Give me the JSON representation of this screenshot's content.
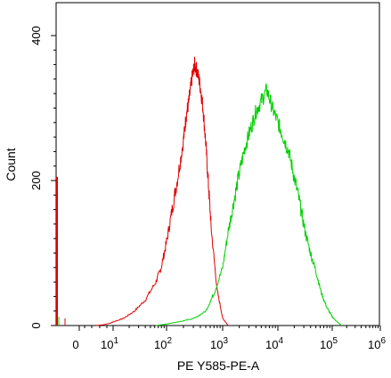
{
  "chart_data": {
    "type": "line",
    "xlabel": "PE Y585-PE-A",
    "ylabel": "Count",
    "x_scale": "biexponential",
    "ylim": [
      0,
      400
    ],
    "x_tick_labels": [
      "0",
      "10^1",
      "10^2",
      "10^3",
      "10^4",
      "10^5",
      "10^6"
    ],
    "x_tick_base": [
      "0",
      "10",
      "10",
      "10",
      "10",
      "10",
      "10"
    ],
    "x_tick_exp": [
      "",
      "1",
      "2",
      "3",
      "4",
      "5",
      "6"
    ],
    "y_tick_labels": [
      "0",
      "200",
      "400"
    ],
    "y_ticks": [
      0,
      200,
      400
    ],
    "grid": false,
    "legend": "none",
    "series": [
      {
        "color": "#e00000",
        "x": [
          0.5,
          0.7,
          0.9,
          1.0,
          1.2,
          1.4,
          1.6,
          1.8,
          1.9,
          2.0,
          2.1,
          2.2,
          2.3,
          2.35,
          2.4,
          2.45,
          2.5,
          2.55,
          2.6,
          2.65,
          2.7,
          2.75,
          2.8,
          2.9,
          3.0,
          3.1
        ],
        "y": [
          0,
          1,
          3,
          5,
          10,
          20,
          35,
          60,
          80,
          115,
          160,
          205,
          255,
          290,
          310,
          340,
          360,
          350,
          330,
          300,
          250,
          190,
          130,
          50,
          10,
          0
        ]
      },
      {
        "color": "#00d000",
        "x": [
          1.8,
          2.0,
          2.2,
          2.5,
          2.7,
          2.85,
          3.0,
          3.1,
          3.2,
          3.3,
          3.4,
          3.5,
          3.6,
          3.7,
          3.8,
          3.9,
          4.0,
          4.1,
          4.2,
          4.3,
          4.4,
          4.5,
          4.6,
          4.7,
          4.8,
          4.9,
          5.0,
          5.1,
          5.2
        ],
        "y": [
          0,
          2,
          5,
          10,
          20,
          45,
          80,
          130,
          170,
          210,
          245,
          270,
          295,
          310,
          325,
          300,
          280,
          260,
          240,
          205,
          170,
          130,
          100,
          75,
          45,
          25,
          12,
          5,
          0
        ]
      }
    ]
  }
}
